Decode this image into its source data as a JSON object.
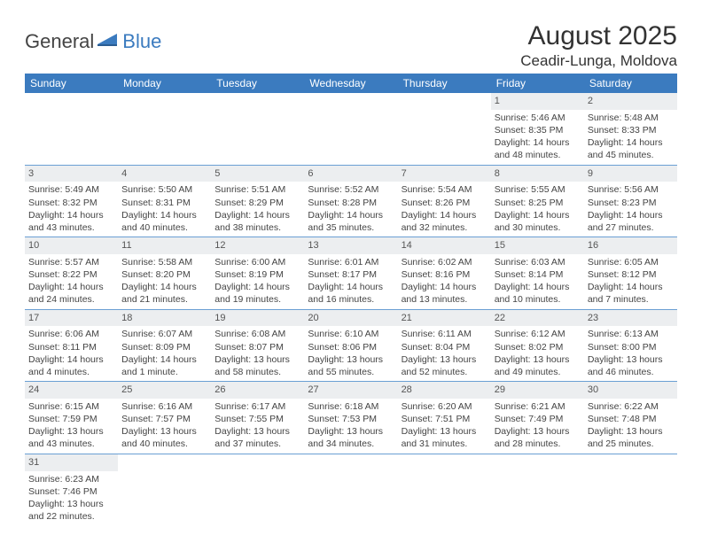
{
  "brand": {
    "part1": "General",
    "part2": "Blue"
  },
  "title": "August 2025",
  "location": "Ceadir-Lunga, Moldova",
  "colors": {
    "header_bg": "#3b7bbf",
    "header_text": "#ffffff",
    "row_divider": "#6a9fd4",
    "daynum_bg": "#eceef0",
    "text": "#444444",
    "brand_blue": "#3b7bbf"
  },
  "weekday_labels": [
    "Sunday",
    "Monday",
    "Tuesday",
    "Wednesday",
    "Thursday",
    "Friday",
    "Saturday"
  ],
  "days": [
    {
      "n": 1,
      "sr": "5:46 AM",
      "ss": "8:35 PM",
      "dl": "14 hours and 48 minutes."
    },
    {
      "n": 2,
      "sr": "5:48 AM",
      "ss": "8:33 PM",
      "dl": "14 hours and 45 minutes."
    },
    {
      "n": 3,
      "sr": "5:49 AM",
      "ss": "8:32 PM",
      "dl": "14 hours and 43 minutes."
    },
    {
      "n": 4,
      "sr": "5:50 AM",
      "ss": "8:31 PM",
      "dl": "14 hours and 40 minutes."
    },
    {
      "n": 5,
      "sr": "5:51 AM",
      "ss": "8:29 PM",
      "dl": "14 hours and 38 minutes."
    },
    {
      "n": 6,
      "sr": "5:52 AM",
      "ss": "8:28 PM",
      "dl": "14 hours and 35 minutes."
    },
    {
      "n": 7,
      "sr": "5:54 AM",
      "ss": "8:26 PM",
      "dl": "14 hours and 32 minutes."
    },
    {
      "n": 8,
      "sr": "5:55 AM",
      "ss": "8:25 PM",
      "dl": "14 hours and 30 minutes."
    },
    {
      "n": 9,
      "sr": "5:56 AM",
      "ss": "8:23 PM",
      "dl": "14 hours and 27 minutes."
    },
    {
      "n": 10,
      "sr": "5:57 AM",
      "ss": "8:22 PM",
      "dl": "14 hours and 24 minutes."
    },
    {
      "n": 11,
      "sr": "5:58 AM",
      "ss": "8:20 PM",
      "dl": "14 hours and 21 minutes."
    },
    {
      "n": 12,
      "sr": "6:00 AM",
      "ss": "8:19 PM",
      "dl": "14 hours and 19 minutes."
    },
    {
      "n": 13,
      "sr": "6:01 AM",
      "ss": "8:17 PM",
      "dl": "14 hours and 16 minutes."
    },
    {
      "n": 14,
      "sr": "6:02 AM",
      "ss": "8:16 PM",
      "dl": "14 hours and 13 minutes."
    },
    {
      "n": 15,
      "sr": "6:03 AM",
      "ss": "8:14 PM",
      "dl": "14 hours and 10 minutes."
    },
    {
      "n": 16,
      "sr": "6:05 AM",
      "ss": "8:12 PM",
      "dl": "14 hours and 7 minutes."
    },
    {
      "n": 17,
      "sr": "6:06 AM",
      "ss": "8:11 PM",
      "dl": "14 hours and 4 minutes."
    },
    {
      "n": 18,
      "sr": "6:07 AM",
      "ss": "8:09 PM",
      "dl": "14 hours and 1 minute."
    },
    {
      "n": 19,
      "sr": "6:08 AM",
      "ss": "8:07 PM",
      "dl": "13 hours and 58 minutes."
    },
    {
      "n": 20,
      "sr": "6:10 AM",
      "ss": "8:06 PM",
      "dl": "13 hours and 55 minutes."
    },
    {
      "n": 21,
      "sr": "6:11 AM",
      "ss": "8:04 PM",
      "dl": "13 hours and 52 minutes."
    },
    {
      "n": 22,
      "sr": "6:12 AM",
      "ss": "8:02 PM",
      "dl": "13 hours and 49 minutes."
    },
    {
      "n": 23,
      "sr": "6:13 AM",
      "ss": "8:00 PM",
      "dl": "13 hours and 46 minutes."
    },
    {
      "n": 24,
      "sr": "6:15 AM",
      "ss": "7:59 PM",
      "dl": "13 hours and 43 minutes."
    },
    {
      "n": 25,
      "sr": "6:16 AM",
      "ss": "7:57 PM",
      "dl": "13 hours and 40 minutes."
    },
    {
      "n": 26,
      "sr": "6:17 AM",
      "ss": "7:55 PM",
      "dl": "13 hours and 37 minutes."
    },
    {
      "n": 27,
      "sr": "6:18 AM",
      "ss": "7:53 PM",
      "dl": "13 hours and 34 minutes."
    },
    {
      "n": 28,
      "sr": "6:20 AM",
      "ss": "7:51 PM",
      "dl": "13 hours and 31 minutes."
    },
    {
      "n": 29,
      "sr": "6:21 AM",
      "ss": "7:49 PM",
      "dl": "13 hours and 28 minutes."
    },
    {
      "n": 30,
      "sr": "6:22 AM",
      "ss": "7:48 PM",
      "dl": "13 hours and 25 minutes."
    },
    {
      "n": 31,
      "sr": "6:23 AM",
      "ss": "7:46 PM",
      "dl": "13 hours and 22 minutes."
    }
  ],
  "labels": {
    "sunrise": "Sunrise:",
    "sunset": "Sunset:",
    "daylight": "Daylight:"
  },
  "first_day_column": 5
}
